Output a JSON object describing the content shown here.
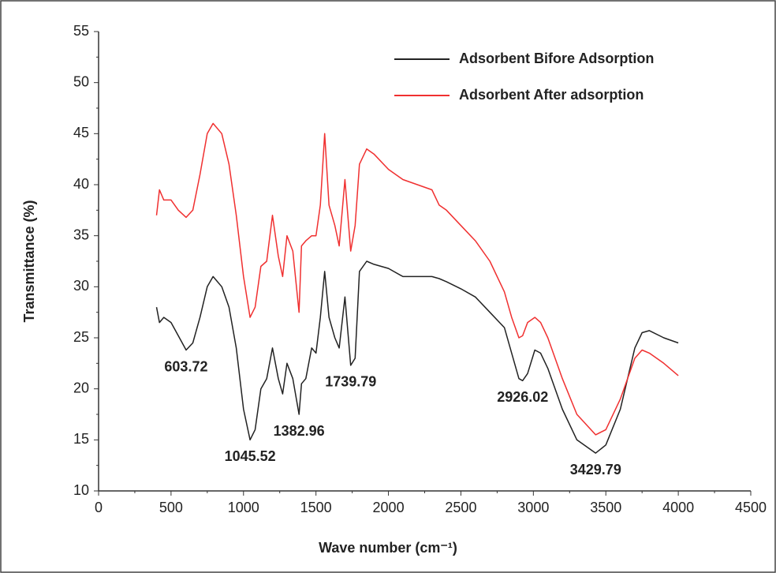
{
  "chart_data": {
    "type": "line",
    "xlabel": "Wave number (cm⁻¹)",
    "ylabel": "Transmittance (%)",
    "x": [
      400,
      420,
      450,
      500,
      550,
      603.72,
      650,
      700,
      750,
      790,
      850,
      900,
      950,
      1000,
      1045.52,
      1080,
      1120,
      1160,
      1200,
      1240,
      1270,
      1300,
      1340,
      1382.96,
      1400,
      1430,
      1470,
      1500,
      1530,
      1560,
      1590,
      1630,
      1660,
      1700,
      1739.79,
      1770,
      1800,
      1850,
      1900,
      2000,
      2100,
      2200,
      2300,
      2350,
      2400,
      2500,
      2600,
      2700,
      2800,
      2850,
      2900,
      2926.02,
      2960,
      3010,
      3050,
      3100,
      3200,
      3300,
      3429.79,
      3500,
      3600,
      3700,
      3750,
      3800,
      3900,
      4000
    ],
    "series": [
      {
        "name": "Adsorbent Bifore Adsorption",
        "color": "#222222",
        "values": [
          28,
          26.5,
          27,
          26.5,
          25.2,
          23.8,
          24.5,
          27,
          30,
          31,
          30,
          28,
          24,
          18,
          15,
          16,
          20,
          21,
          24,
          21,
          19.5,
          22.5,
          21,
          17.5,
          20.5,
          21,
          24,
          23.5,
          27,
          31.5,
          27,
          25,
          24,
          29,
          22.3,
          23,
          31.5,
          32.5,
          32.2,
          31.8,
          31,
          31,
          31,
          30.8,
          30.5,
          29.8,
          29,
          27.5,
          26,
          23.5,
          21,
          20.8,
          21.5,
          23.8,
          23.5,
          22,
          18,
          15,
          13.7,
          14.5,
          18,
          24,
          25.5,
          25.7,
          25,
          24.5
        ]
      },
      {
        "name": "Adsorbent After adsorption",
        "color": "#f03030",
        "values": [
          37,
          39.5,
          38.5,
          38.5,
          37.5,
          36.8,
          37.5,
          41,
          45,
          46,
          45,
          42,
          37,
          31,
          27,
          28,
          32,
          32.5,
          37,
          33,
          31,
          35,
          33.5,
          27.5,
          34,
          34.5,
          35,
          35,
          38,
          45,
          38,
          36,
          34,
          40.5,
          33.5,
          36,
          42,
          43.5,
          43,
          41.5,
          40.5,
          40,
          39.5,
          38,
          37.5,
          36,
          34.5,
          32.5,
          29.5,
          27,
          25,
          25.2,
          26.5,
          27,
          26.5,
          25,
          21,
          17.5,
          15.5,
          16,
          19,
          23,
          23.8,
          23.5,
          22.5,
          21.3
        ]
      }
    ],
    "annotations": [
      {
        "text": "603.72",
        "x": 603.72
      },
      {
        "text": "1045.52",
        "x": 1045.52
      },
      {
        "text": "1382.96",
        "x": 1382.96
      },
      {
        "text": "1739.79",
        "x": 1739.79
      },
      {
        "text": "2926.02",
        "x": 2926.02
      },
      {
        "text": "3429.79",
        "x": 3429.79
      }
    ],
    "xlim": [
      0,
      4500
    ],
    "xticks": [
      0,
      500,
      1000,
      1500,
      2000,
      2500,
      3000,
      3500,
      4000,
      4500
    ],
    "ylim": [
      10,
      55
    ],
    "yticks": [
      10,
      15,
      20,
      25,
      30,
      35,
      40,
      45,
      50,
      55
    ],
    "legend": "upper right",
    "grid": false
  }
}
